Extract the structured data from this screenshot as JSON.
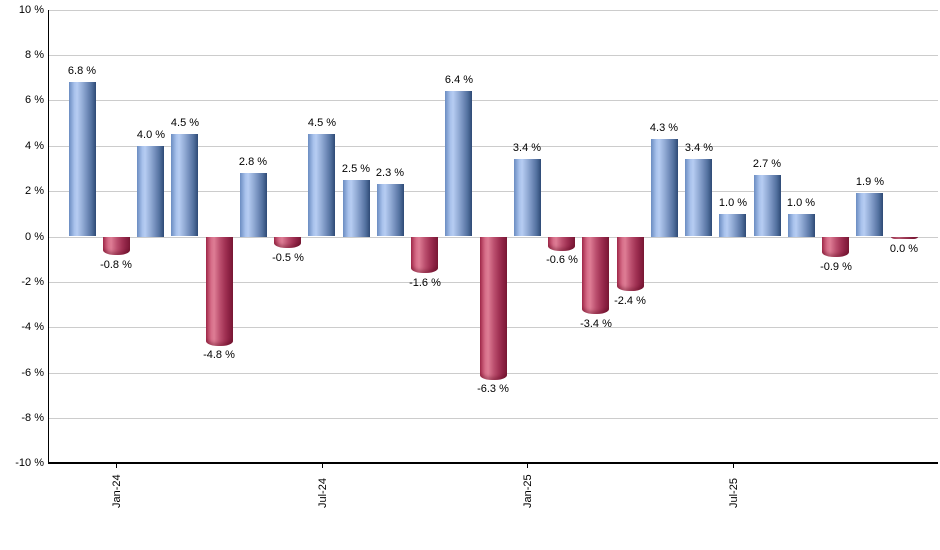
{
  "chart_data": {
    "type": "bar",
    "title": "",
    "grid": true,
    "legend": "none",
    "y_axis": {
      "min": -10,
      "max": 10,
      "step": 2,
      "unit": "%",
      "tick_labels": [
        "10 %",
        "8 %",
        "6 %",
        "4 %",
        "2 %",
        "0 %",
        "-2 %",
        "-4 %",
        "-6 %",
        "-8 %",
        "-10 %"
      ]
    },
    "x_axis": {
      "tick_labels": [
        "Jan-24",
        "Jul-24",
        "Jan-25",
        "Jul-25"
      ],
      "tick_bar_indices": [
        1,
        7,
        13,
        19
      ]
    },
    "values": [
      6.8,
      -0.8,
      4.0,
      4.5,
      -4.8,
      2.8,
      -0.5,
      4.5,
      2.5,
      2.3,
      -1.6,
      6.4,
      -6.3,
      3.4,
      -0.6,
      -3.4,
      -2.4,
      4.3,
      3.4,
      1.0,
      2.7,
      1.0,
      -0.9,
      1.9,
      0.0
    ],
    "value_labels": [
      "6.8 %",
      "-0.8 %",
      "4.0 %",
      "4.5 %",
      "-4.8 %",
      "2.8 %",
      "-0.5 %",
      "4.5 %",
      "2.5 %",
      "2.3 %",
      "-1.6 %",
      "6.4 %",
      "-6.3 %",
      "3.4 %",
      "-0.6 %",
      "-3.4 %",
      "-2.4 %",
      "4.3 %",
      "3.4 %",
      "1.0 %",
      "2.7 %",
      "1.0 %",
      "-0.9 %",
      "1.9 %",
      "0.0 %"
    ],
    "colors": {
      "positive_bar": "#7b9cd1",
      "negative_bar": "#b43a5c",
      "gridline": "#cccccc",
      "axis": "#000000",
      "label_text": "#000000"
    }
  }
}
